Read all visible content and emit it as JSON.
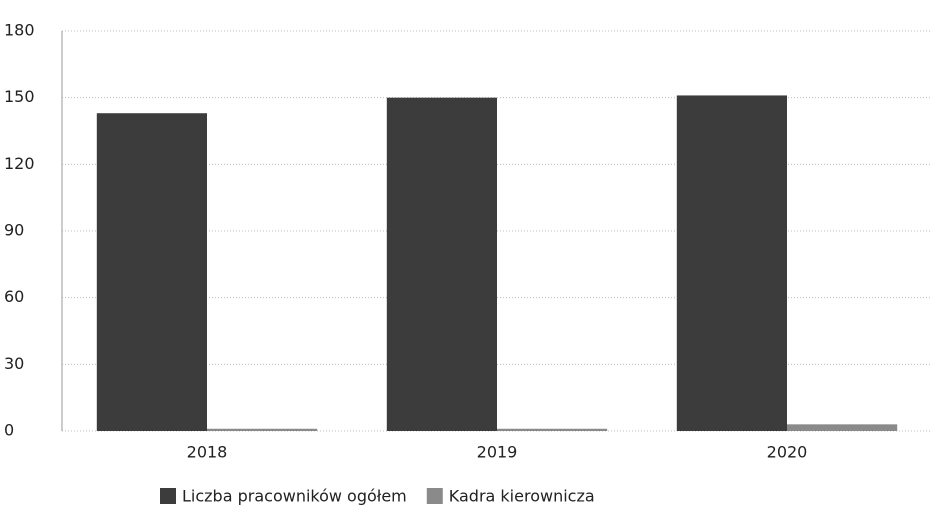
{
  "chart_data": {
    "type": "bar",
    "categories": [
      "2018",
      "2019",
      "2020"
    ],
    "series": [
      {
        "name": "Liczba pracowników ogółem",
        "color": "#3c3c3c",
        "values": [
          143,
          150,
          151
        ]
      },
      {
        "name": "Kadra kierownicza",
        "color": "#8a8a8a",
        "values": [
          1,
          1,
          3
        ]
      }
    ],
    "ylim": [
      0,
      180
    ],
    "yticks": [
      0,
      30,
      60,
      90,
      120,
      150,
      180
    ],
    "grid": true,
    "legend": "bottom"
  }
}
